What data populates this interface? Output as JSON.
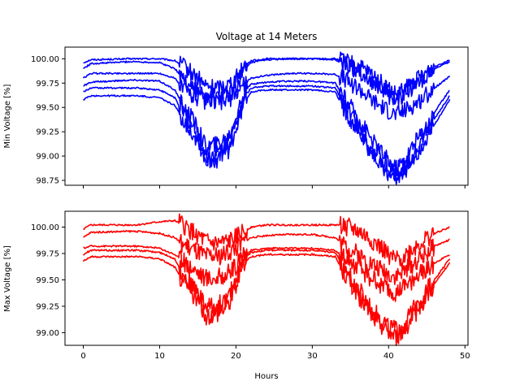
{
  "chart_data": [
    {
      "type": "line",
      "title": "Voltage at 14 Meters",
      "xlabel": "",
      "ylabel": "Min Voltage [%]",
      "xlim": [
        -2.4,
        50.4
      ],
      "ylim": [
        98.7,
        100.12
      ],
      "xticks": [
        0,
        10,
        20,
        30,
        40,
        50
      ],
      "xtick_labels_shown": false,
      "yticks": [
        98.75,
        99.0,
        99.25,
        99.5,
        99.75,
        100.0
      ],
      "ytick_labels": [
        "98.75",
        "99.00",
        "99.25",
        "99.50",
        "99.75",
        "100.00"
      ],
      "color": "#0000ff",
      "x_knots": [
        0,
        1,
        6,
        7,
        10,
        12,
        13,
        15,
        16,
        17.5,
        19,
        20,
        21,
        22,
        24,
        27,
        30,
        33,
        34,
        36,
        38,
        40,
        41,
        42,
        44,
        46,
        48
      ],
      "series": [
        {
          "values": [
            99.96,
            99.99,
            100.0,
            100.0,
            100.0,
            99.98,
            99.93,
            99.8,
            99.72,
            99.7,
            99.74,
            99.8,
            99.92,
            99.98,
            100.0,
            100.0,
            100.0,
            100.0,
            99.98,
            99.92,
            99.82,
            99.68,
            99.62,
            99.68,
            99.8,
            99.92,
            99.99
          ]
        },
        {
          "values": [
            99.9,
            99.95,
            99.97,
            99.97,
            99.96,
            99.9,
            99.8,
            99.68,
            99.6,
            99.6,
            99.64,
            99.72,
            99.88,
            99.96,
            99.99,
            100.0,
            100.0,
            99.99,
            99.95,
            99.88,
            99.76,
            99.62,
            99.56,
            99.62,
            99.76,
            99.9,
            99.97
          ]
        },
        {
          "values": [
            99.8,
            99.85,
            99.85,
            99.85,
            99.85,
            99.8,
            99.7,
            99.6,
            99.55,
            99.55,
            99.58,
            99.64,
            99.74,
            99.8,
            99.83,
            99.85,
            99.85,
            99.84,
            99.8,
            99.7,
            99.56,
            99.46,
            99.42,
            99.46,
            99.56,
            99.7,
            99.82
          ]
        },
        {
          "values": [
            99.72,
            99.76,
            99.78,
            99.78,
            99.77,
            99.68,
            99.52,
            99.3,
            99.1,
            99.12,
            99.2,
            99.4,
            99.65,
            99.74,
            99.76,
            99.77,
            99.77,
            99.75,
            99.62,
            99.4,
            99.15,
            98.95,
            98.88,
            98.96,
            99.2,
            99.45,
            99.68
          ]
        },
        {
          "values": [
            99.66,
            99.7,
            99.7,
            99.7,
            99.68,
            99.6,
            99.45,
            99.22,
            99.0,
            99.02,
            99.12,
            99.32,
            99.6,
            99.7,
            99.72,
            99.72,
            99.72,
            99.7,
            99.56,
            99.32,
            99.05,
            98.86,
            98.8,
            98.88,
            99.1,
            99.38,
            99.62
          ]
        },
        {
          "values": [
            99.58,
            99.62,
            99.62,
            99.62,
            99.6,
            99.52,
            99.38,
            99.16,
            98.95,
            98.96,
            99.06,
            99.26,
            99.55,
            99.66,
            99.68,
            99.68,
            99.68,
            99.66,
            99.5,
            99.26,
            99.0,
            98.82,
            98.78,
            98.84,
            99.05,
            99.32,
            99.58
          ]
        }
      ]
    },
    {
      "type": "line",
      "title": "",
      "xlabel": "Hours",
      "ylabel": "Max Voltage [%]",
      "xlim": [
        -2.4,
        50.4
      ],
      "ylim": [
        98.88,
        100.15
      ],
      "xticks": [
        0,
        10,
        20,
        30,
        40,
        50
      ],
      "xtick_labels": [
        "0",
        "10",
        "20",
        "30",
        "40",
        "50"
      ],
      "yticks": [
        99.0,
        99.25,
        99.5,
        99.75,
        100.0
      ],
      "ytick_labels": [
        "99.00",
        "99.25",
        "99.50",
        "99.75",
        "100.00"
      ],
      "color": "#ff0000",
      "x_knots": [
        0,
        1,
        6,
        7,
        10,
        12,
        13,
        15,
        16,
        17.5,
        19,
        20,
        21,
        22,
        24,
        27,
        30,
        33,
        34,
        36,
        38,
        40,
        41,
        42,
        44,
        46,
        48
      ],
      "series": [
        {
          "values": [
            99.98,
            100.02,
            100.02,
            100.02,
            100.05,
            100.06,
            100.02,
            99.92,
            99.86,
            99.84,
            99.86,
            99.9,
            99.96,
            100.0,
            100.02,
            100.02,
            100.02,
            100.02,
            100.02,
            99.96,
            99.86,
            99.74,
            99.68,
            99.72,
            99.84,
            99.94,
            100.0
          ]
        },
        {
          "values": [
            99.9,
            99.95,
            99.96,
            99.96,
            99.94,
            99.9,
            99.84,
            99.76,
            99.72,
            99.72,
            99.76,
            99.8,
            99.86,
            99.9,
            99.92,
            99.93,
            99.93,
            99.9,
            99.84,
            99.74,
            99.64,
            99.56,
            99.54,
            99.58,
            99.7,
            99.82,
            99.88
          ]
        },
        {
          "values": [
            99.8,
            99.82,
            99.82,
            99.82,
            99.8,
            99.74,
            99.68,
            99.58,
            99.52,
            99.52,
            99.56,
            99.62,
            99.72,
            99.78,
            99.8,
            99.8,
            99.8,
            99.78,
            99.72,
            99.62,
            99.5,
            99.4,
            99.36,
            99.42,
            99.55,
            99.66,
            99.74
          ]
        },
        {
          "values": [
            99.74,
            99.78,
            99.78,
            99.78,
            99.76,
            99.7,
            99.56,
            99.38,
            99.25,
            99.25,
            99.32,
            99.5,
            99.7,
            99.76,
            99.78,
            99.78,
            99.78,
            99.76,
            99.64,
            99.42,
            99.2,
            99.06,
            99.02,
            99.08,
            99.3,
            99.5,
            99.7
          ]
        },
        {
          "values": [
            99.68,
            99.72,
            99.72,
            99.72,
            99.7,
            99.62,
            99.48,
            99.3,
            99.16,
            99.18,
            99.26,
            99.44,
            99.66,
            99.72,
            99.74,
            99.74,
            99.74,
            99.72,
            99.58,
            99.36,
            99.14,
            99.0,
            98.96,
            99.02,
            99.24,
            99.46,
            99.66
          ]
        }
      ]
    }
  ]
}
